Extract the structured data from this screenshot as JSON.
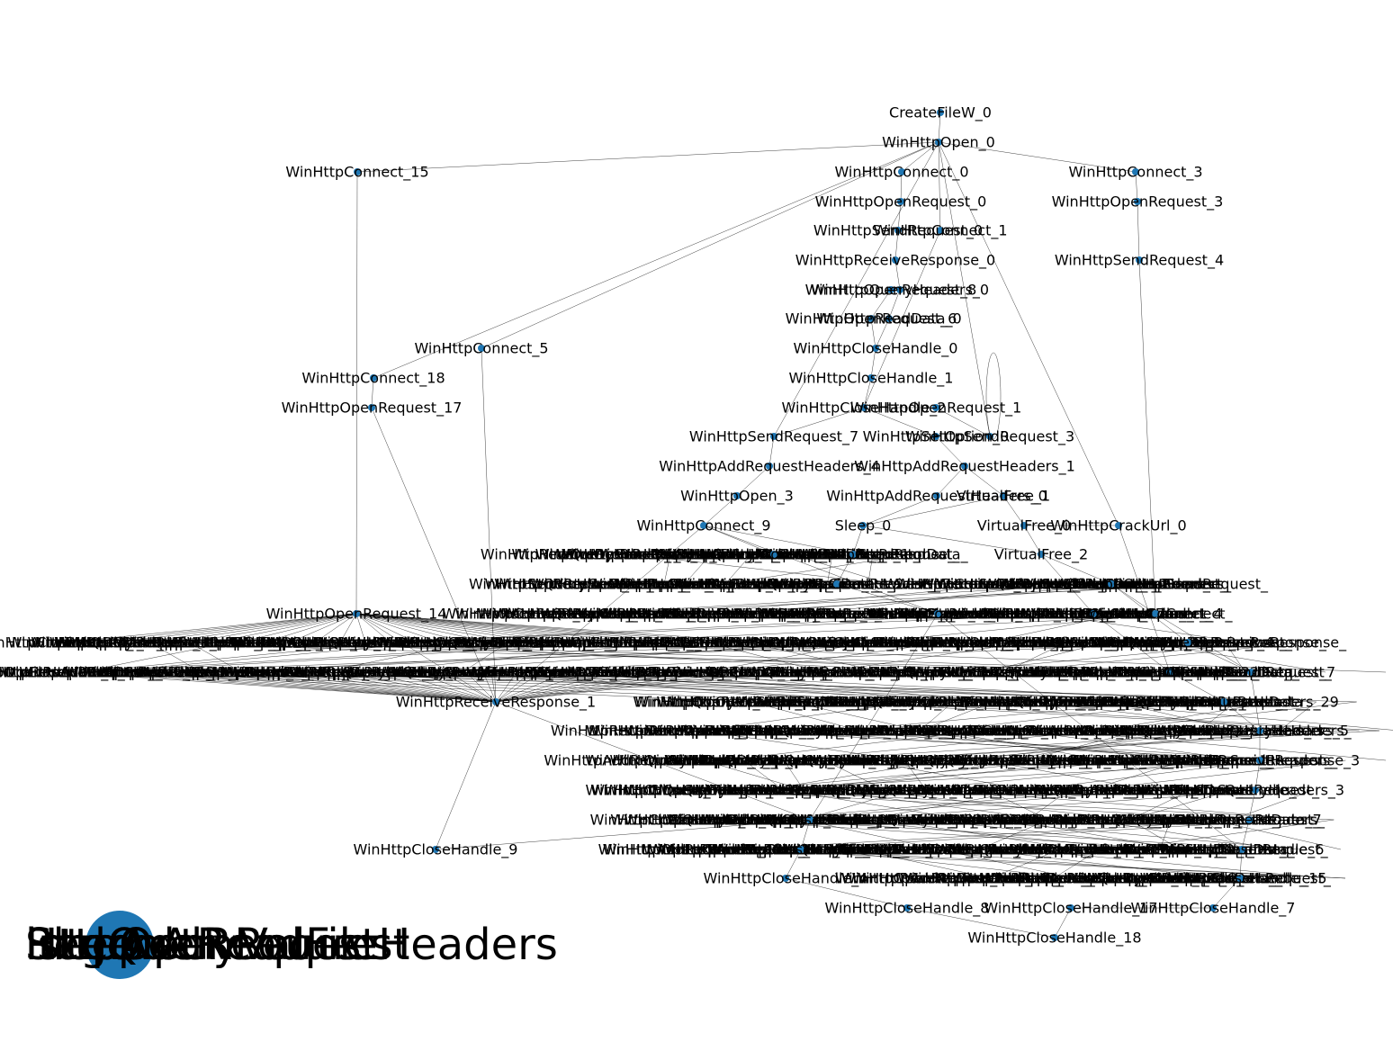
{
  "graph": {
    "node_color": "#1f77b4",
    "edge_color": "#000000",
    "legend_node": {
      "labels": [
        "lstrlenA",
        "Sleep",
        "RegQueryValue",
        "HttpOpenRequest",
        "InternetReadFile",
        "HttpAddRequestHeaders"
      ]
    },
    "nodes": [
      {
        "id": "CreateFileW_0",
        "label": "CreateFileW_0"
      },
      {
        "id": "WinHttpOpen_0",
        "label": "WinHttpOpen_0"
      },
      {
        "id": "WinHttpConnect_15",
        "label": "WinHttpConnect_15"
      },
      {
        "id": "WinHttpConnect_0",
        "label": "WinHttpConnect_0"
      },
      {
        "id": "WinHttpConnect_3",
        "label": "WinHttpConnect_3"
      },
      {
        "id": "WinHttpOpenRequest_0",
        "label": "WinHttpOpenRequest_0"
      },
      {
        "id": "WinHttpOpenRequest_3",
        "label": "WinHttpOpenRequest_3"
      },
      {
        "id": "WinHttpSendRequest_0",
        "label": "WinHttpSendRequest_0"
      },
      {
        "id": "WinHttpConnect_1",
        "label": "WinHttpConnect_1"
      },
      {
        "id": "WinHttpReceiveResponse_0",
        "label": "WinHttpReceiveResponse_0"
      },
      {
        "id": "WinHttpSendRequest_4",
        "label": "WinHttpSendRequest_4"
      },
      {
        "id": "WinHttpOpenRequest_8",
        "label": "WinHttpOpenRequest_8"
      },
      {
        "id": "WinHttpQueryHeaders_0",
        "label": "WinHttpQueryHeaders_0"
      },
      {
        "id": "WinHttpOpenRequest_6",
        "label": "WinHttpOpenRequest_6"
      },
      {
        "id": "WinHttpReadData_0",
        "label": "WinHttpReadData_0"
      },
      {
        "id": "WinHttpConnect_5",
        "label": "WinHttpConnect_5"
      },
      {
        "id": "WinHttpCloseHandle_0",
        "label": "WinHttpCloseHandle_0"
      },
      {
        "id": "WinHttpConnect_18",
        "label": "WinHttpConnect_18"
      },
      {
        "id": "WinHttpCloseHandle_1",
        "label": "WinHttpCloseHandle_1"
      },
      {
        "id": "WinHttpOpenRequest_17",
        "label": "WinHttpOpenRequest_17"
      },
      {
        "id": "WinHttpCloseHandle_2",
        "label": "WinHttpCloseHandle_2"
      },
      {
        "id": "WinHttpOpenRequest_1",
        "label": "WinHttpOpenRequest_1"
      },
      {
        "id": "WinHttpSendRequest_7",
        "label": "WinHttpSendRequest_7"
      },
      {
        "id": "WinHttpSetOption_0",
        "label": "WinHttpSetOption_0"
      },
      {
        "id": "WinHttpSendRequest_3",
        "label": "WinHttpSendRequest_3"
      },
      {
        "id": "WinHttpAddRequestHeaders_4",
        "label": "WinHttpAddRequestHeaders_4"
      },
      {
        "id": "WinHttpAddRequestHeaders_1",
        "label": "WinHttpAddRequestHeaders_1"
      },
      {
        "id": "WinHttpOpen_3",
        "label": "WinHttpOpen_3"
      },
      {
        "id": "WinHttpAddRequestHeaders_0",
        "label": "WinHttpAddRequestHeaders_0"
      },
      {
        "id": "VirtualFree_1",
        "label": "VirtualFree_1"
      },
      {
        "id": "WinHttpConnect_9",
        "label": "WinHttpConnect_9"
      },
      {
        "id": "Sleep_0",
        "label": "Sleep_0"
      },
      {
        "id": "VirtualFree_0",
        "label": "VirtualFree_0"
      },
      {
        "id": "WinHttpCrackUrl_0",
        "label": "WinHttpCrackUrl_0"
      },
      {
        "id": "WinHttpConnect_10",
        "label": "WinHttpConnect_10"
      },
      {
        "id": "WinHttpOpen_1",
        "label": "WinHttpOpen_1"
      },
      {
        "id": "VirtualFree_2",
        "label": "VirtualFree_2"
      },
      {
        "id": "WinHttpConnect_2",
        "label": "WinHttpConnect_2"
      },
      {
        "id": "WinHttpOpen_2",
        "label": "WinHttpOpen_2"
      },
      {
        "id": "WinHttpOpenRequest_14",
        "label": "WinHttpOpenRequest_14"
      },
      {
        "id": "WinHttpConnect_26",
        "label": "WinHttpConnect_26"
      },
      {
        "id": "WinHttpConnect_17",
        "label": "WinHttpConnect_17"
      },
      {
        "id": "WinHttpConnect_4",
        "label": "WinHttpConnect_4"
      },
      {
        "id": "WinHttpOpenRequest_4",
        "label": "WinHttpOpenRequest_4"
      },
      {
        "id": "WinHttpSendRequest_22",
        "label": "WinHttpSendRequest_22"
      },
      {
        "id": "WinHttpSendRequest_7b",
        "label": "WinHttpSendRequest_7"
      },
      {
        "id": "WinHttpReceiveResponse_1",
        "label": "WinHttpReceiveResponse_1"
      },
      {
        "id": "WinHttpAddRequestHeaders_29",
        "label": "WinHttpAddRequestHeaders_29"
      },
      {
        "id": "WinHttpQueryHeaders_5",
        "label": "WinHttpQueryHeaders_5"
      },
      {
        "id": "WinHttpReceiveResponse_3",
        "label": "WinHttpReceiveResponse_3"
      },
      {
        "id": "WinHttpQueryHeaders_3",
        "label": "WinHttpQueryHeaders_3"
      },
      {
        "id": "WinHttpReadData_7",
        "label": "WinHttpReadData_7"
      },
      {
        "id": "WinHttpCloseHandle_25",
        "label": "WinHttpCloseHandle_25"
      },
      {
        "id": "WinHttpCloseHandle_9",
        "label": "WinHttpCloseHandle_9"
      },
      {
        "id": "WinHttpCloseHandle_24",
        "label": "WinHttpCloseHandle_24"
      },
      {
        "id": "WinHttpCloseHandle_6",
        "label": "WinHttpCloseHandle_6"
      },
      {
        "id": "WinHttpCloseHandle_4",
        "label": "WinHttpCloseHandle_4"
      },
      {
        "id": "WinHttpCloseHandle_15",
        "label": "WinHttpCloseHandle_15"
      },
      {
        "id": "WinHttpCloseHandle_8",
        "label": "WinHttpCloseHandle_8"
      },
      {
        "id": "WinHttpCloseHandle_17",
        "label": "WinHttpCloseHandle_17"
      },
      {
        "id": "WinHttpCloseHandle_7",
        "label": "WinHttpCloseHandle_7"
      },
      {
        "id": "WinHttpCloseHandle_18",
        "label": "WinHttpCloseHandle_18"
      }
    ],
    "edges": [
      [
        "CreateFileW_0",
        "WinHttpOpen_0"
      ],
      [
        "WinHttpOpen_0",
        "WinHttpConnect_15"
      ],
      [
        "WinHttpOpen_0",
        "WinHttpConnect_0"
      ],
      [
        "WinHttpOpen_0",
        "WinHttpConnect_3"
      ],
      [
        "WinHttpOpen_0",
        "WinHttpConnect_5"
      ],
      [
        "WinHttpOpen_0",
        "WinHttpConnect_18"
      ],
      [
        "WinHttpOpen_0",
        "WinHttpConnect_1"
      ],
      [
        "WinHttpOpen_0",
        "WinHttpSendRequest_3"
      ],
      [
        "WinHttpOpen_0",
        "WinHttpCrackUrl_0"
      ],
      [
        "WinHttpOpen_0",
        "WinHttpSendRequest_7"
      ],
      [
        "WinHttpConnect_0",
        "WinHttpOpenRequest_0"
      ],
      [
        "WinHttpOpenRequest_0",
        "WinHttpSendRequest_0"
      ],
      [
        "WinHttpSendRequest_0",
        "WinHttpReceiveResponse_0"
      ],
      [
        "WinHttpReceiveResponse_0",
        "WinHttpQueryHeaders_0"
      ],
      [
        "WinHttpQueryHeaders_0",
        "WinHttpReadData_0"
      ],
      [
        "WinHttpReadData_0",
        "WinHttpCloseHandle_0"
      ],
      [
        "WinHttpCloseHandle_0",
        "WinHttpCloseHandle_1"
      ],
      [
        "WinHttpCloseHandle_1",
        "WinHttpCloseHandle_2"
      ],
      [
        "WinHttpConnect_3",
        "WinHttpOpenRequest_3"
      ],
      [
        "WinHttpOpenRequest_3",
        "WinHttpSendRequest_4"
      ],
      [
        "WinHttpSendRequest_4",
        "WinHttpConnect_4"
      ],
      [
        "WinHttpConnect_15",
        "WinHttpOpenRequest_14"
      ],
      [
        "WinHttpConnect_18",
        "WinHttpOpenRequest_17"
      ],
      [
        "WinHttpOpenRequest_17",
        "WinHttpReceiveResponse_1"
      ],
      [
        "WinHttpConnect_5",
        "WinHttpReceiveResponse_1"
      ],
      [
        "WinHttpCloseHandle_2",
        "WinHttpOpenRequest_1"
      ],
      [
        "WinHttpCloseHandle_2",
        "WinHttpSendRequest_7"
      ],
      [
        "WinHttpCloseHandle_2",
        "WinHttpSetOption_0"
      ],
      [
        "WinHttpOpenRequest_1",
        "WinHttpSendRequest_3"
      ],
      [
        "WinHttpSendRequest_7",
        "WinHttpAddRequestHeaders_4"
      ],
      [
        "WinHttpAddRequestHeaders_4",
        "WinHttpOpen_3"
      ],
      [
        "WinHttpOpen_3",
        "WinHttpConnect_9"
      ],
      [
        "WinHttpSetOption_0",
        "WinHttpAddRequestHeaders_1"
      ],
      [
        "WinHttpAddRequestHeaders_1",
        "WinHttpAddRequestHeaders_0"
      ],
      [
        "WinHttpAddRequestHeaders_1",
        "VirtualFree_1"
      ],
      [
        "WinHttpAddRequestHeaders_0",
        "Sleep_0"
      ],
      [
        "VirtualFree_1",
        "VirtualFree_0"
      ],
      [
        "VirtualFree_1",
        "Sleep_0"
      ],
      [
        "VirtualFree_0",
        "VirtualFree_2"
      ],
      [
        "VirtualFree_0",
        "WinHttpCrackUrl_0"
      ],
      [
        "Sleep_0",
        "VirtualFree_2"
      ],
      [
        "Sleep_0",
        "WinHttpOpen_1"
      ],
      [
        "WinHttpConnect_9",
        "WinHttpConnect_10"
      ],
      [
        "WinHttpConnect_9",
        "WinHttpOpen_1"
      ],
      [
        "WinHttpConnect_9",
        "WinHttpConnect_26"
      ],
      [
        "WinHttpConnect_9",
        "WinHttpReceiveResponse_1"
      ],
      [
        "WinHttpOpen_1",
        "WinHttpConnect_2"
      ],
      [
        "VirtualFree_2",
        "WinHttpOpen_2"
      ],
      [
        "VirtualFree_2",
        "WinHttpConnect_17"
      ],
      [
        "WinHttpOpen_2",
        "WinHttpConnect_4"
      ],
      [
        "WinHttpOpen_2",
        "WinHttpOpenRequest_4"
      ],
      [
        "WinHttpConnect_4",
        "WinHttpSendRequest_7b"
      ],
      [
        "WinHttpConnect_2",
        "WinHttpConnect_26"
      ],
      [
        "WinHttpConnect_17",
        "WinHttpSendRequest_22"
      ],
      [
        "WinHttpSendRequest_22",
        "WinHttpAddRequestHeaders_29"
      ],
      [
        "WinHttpAddRequestHeaders_29",
        "WinHttpQueryHeaders_5"
      ],
      [
        "WinHttpQueryHeaders_5",
        "WinHttpReceiveResponse_3"
      ],
      [
        "WinHttpReceiveResponse_3",
        "WinHttpQueryHeaders_3"
      ],
      [
        "WinHttpQueryHeaders_3",
        "WinHttpReadData_7"
      ],
      [
        "WinHttpReadData_7",
        "WinHttpCloseHandle_6"
      ],
      [
        "WinHttpCloseHandle_6",
        "WinHttpCloseHandle_15"
      ],
      [
        "WinHttpCloseHandle_15",
        "WinHttpCloseHandle_7"
      ],
      [
        "WinHttpCloseHandle_7",
        "WinHttpCloseHandle_17"
      ],
      [
        "WinHttpCloseHandle_17",
        "WinHttpCloseHandle_18"
      ],
      [
        "WinHttpCloseHandle_8",
        "WinHttpCloseHandle_18"
      ],
      [
        "WinHttpCloseHandle_4",
        "WinHttpCloseHandle_8"
      ],
      [
        "WinHttpCloseHandle_24",
        "WinHttpCloseHandle_4"
      ],
      [
        "WinHttpCloseHandle_25",
        "WinHttpCloseHandle_24"
      ],
      [
        "WinHttpCloseHandle_25",
        "WinHttpCloseHandle_9"
      ],
      [
        "WinHttpReceiveResponse_1",
        "WinHttpCloseHandle_9"
      ],
      [
        "WinHttpReceiveResponse_1",
        "WinHttpCloseHandle_25"
      ],
      [
        "WinHttpOpenRequest_14",
        "WinHttpReceiveResponse_1"
      ],
      [
        "WinHttpConnect_26",
        "WinHttpCloseHandle_25"
      ],
      [
        "WinHttpConnect_26",
        "WinHttpCloseHandle_6"
      ],
      [
        "WinHttpOpenRequest_4",
        "WinHttpSendRequest_7b"
      ],
      [
        "WinHttpSendRequest_7b",
        "WinHttpQueryHeaders_5"
      ],
      [
        "WinHttpCrackUrl_0",
        "WinHttpSendRequest_22"
      ],
      [
        "WinHttpConnect_1",
        "WinHttpCloseHandle_2"
      ],
      [
        "WinHttpOpenRequest_8",
        "WinHttpOpenRequest_6"
      ],
      [
        "WinHttpOpenRequest_6",
        "WinHttpCloseHandle_0"
      ]
    ]
  }
}
